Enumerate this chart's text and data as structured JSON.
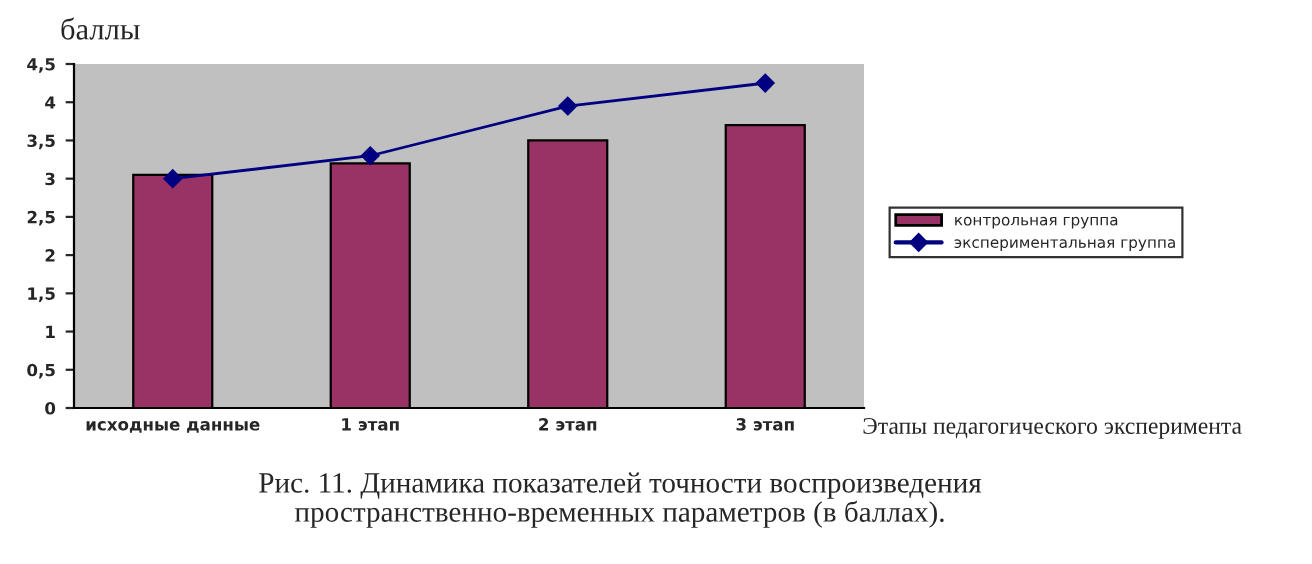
{
  "chart_data": {
    "type": "bar",
    "ylabel": "баллы",
    "xlabel": "Этапы педагогического эксперимента",
    "annotations": [
      "Рис. 11. Динамика показателей точности воспроизведения\nпространственно-временных параметров (в баллах)."
    ],
    "categories": [
      "исходные данные",
      "1 этап",
      "2 этап",
      "3 этап"
    ],
    "series": [
      {
        "name": "контрольная группа",
        "color": "#993366",
        "values": [
          3.05,
          3.2,
          3.5,
          3.7
        ]
      },
      {
        "name": "экспериментальная группа",
        "type": "line",
        "color": "#000080",
        "values": [
          3.0,
          3.3,
          3.95,
          4.25
        ],
        "marker": "diamond"
      }
    ],
    "ylim": [
      0,
      4.5
    ],
    "yticks": [
      0,
      {
        "value": 0.5,
        "label": "0,5"
      },
      1,
      {
        "value": 1.5,
        "label": "1,5"
      },
      2,
      {
        "value": 2.5,
        "label": "2,5"
      },
      3,
      {
        "value": 3.5,
        "label": "3,5"
      },
      4,
      {
        "value": 4.5,
        "label": "4,5"
      }
    ],
    "grid": false,
    "legend": "right"
  }
}
